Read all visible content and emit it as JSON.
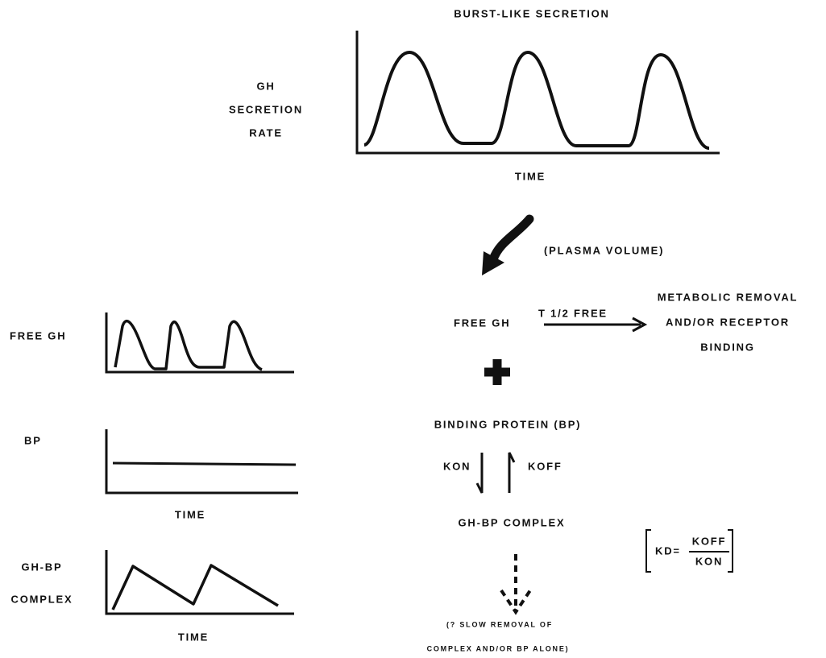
{
  "top_panel": {
    "title": "BURST-LIKE SECRETION",
    "y_label": [
      "GH",
      "SECRETION",
      "RATE"
    ],
    "x_label": "TIME"
  },
  "flow": {
    "volume_label": "(PLASMA VOLUME)",
    "free_gh": "FREE GH",
    "half_life": "T 1/2 FREE",
    "removal": [
      "METABOLIC REMOVAL",
      "AND/OR RECEPTOR",
      "BINDING"
    ],
    "binding_protein": "BINDING PROTEIN (BP)",
    "k_on": "KON",
    "k_off": "KOFF",
    "complex": "GH-BP COMPLEX",
    "kd": {
      "lhs": "KD=",
      "numerator": "KOFF",
      "denominator": "KON"
    },
    "slow_removal": [
      "(? SLOW REMOVAL OF",
      "COMPLEX AND/OR BP ALONE)"
    ]
  },
  "left_panels": [
    {
      "y_label": [
        "FREE GH"
      ]
    },
    {
      "y_label": [
        "BP"
      ],
      "x_label": "TIME"
    },
    {
      "y_label": [
        "GH-BP",
        "COMPLEX"
      ],
      "x_label": "TIME"
    }
  ]
}
